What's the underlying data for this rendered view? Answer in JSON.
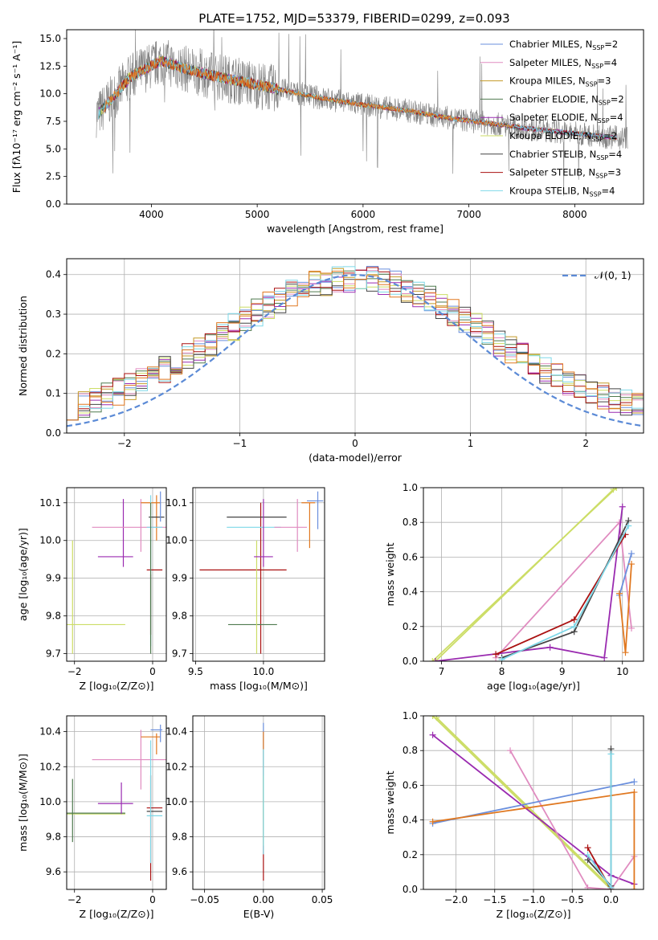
{
  "title": "PLATE=1752, MJD=53379, FIBERID=0299, z=0.093",
  "colors": {
    "chabrier_miles": "#6a8fdd",
    "salpeter_miles": "#e08cc0",
    "kroupa_miles": "#c49a27",
    "chabrier_elodie": "#4f7a4f",
    "salpeter_elodie": "#9a2bb0",
    "kroupa_elodie": "#ccdd66",
    "chabrier_stelib": "#444444",
    "salpeter_stelib": "#aa1111",
    "kroupa_stelib": "#7ed8e8",
    "data": "#808080",
    "orange": "#e07820",
    "gaussian": "#5b8ad6"
  },
  "legend": [
    {
      "label": "Chabrier MILES, N",
      "sub": "SSP",
      "tail": "=2",
      "color_key": "chabrier_miles"
    },
    {
      "label": "Salpeter MILES, N",
      "sub": "SSP",
      "tail": "=4",
      "color_key": "salpeter_miles"
    },
    {
      "label": "Kroupa MILES, N",
      "sub": "SSP",
      "tail": "=3",
      "color_key": "kroupa_miles"
    },
    {
      "label": "Chabrier ELODIE, N",
      "sub": "SSP",
      "tail": "=2",
      "color_key": "chabrier_elodie"
    },
    {
      "label": "Salpeter ELODIE, N",
      "sub": "SSP",
      "tail": "=4",
      "color_key": "salpeter_elodie"
    },
    {
      "label": "Kroupa ELODIE, N",
      "sub": "SSP",
      "tail": "=2",
      "color_key": "kroupa_elodie"
    },
    {
      "label": "Chabrier STELIB, N",
      "sub": "SSP",
      "tail": "=4",
      "color_key": "chabrier_stelib"
    },
    {
      "label": "Salpeter STELIB, N",
      "sub": "SSP",
      "tail": "=3",
      "color_key": "salpeter_stelib"
    },
    {
      "label": "Kroupa STELIB, N",
      "sub": "SSP",
      "tail": "=4",
      "color_key": "kroupa_stelib"
    }
  ],
  "gauss_legend": "𝒩(0, 1)",
  "chart_data": [
    {
      "id": "spectrum",
      "type": "line",
      "xlabel": "wavelength [Angstrom, rest frame]",
      "ylabel": "Flux [fλ10⁻¹⁷ erg cm⁻² s⁻¹ A⁻¹]",
      "xlim": [
        3200,
        8650
      ],
      "ylim": [
        0,
        15.8
      ],
      "xticks": [
        4000,
        5000,
        6000,
        7000,
        8000
      ],
      "yticks": [
        0.0,
        2.5,
        5.0,
        7.5,
        10.0,
        12.5,
        15.0
      ],
      "ytick_labels": [
        "0.0",
        "2.5",
        "5.0",
        "7.5",
        "10.0",
        "12.5",
        "15.0"
      ],
      "model_knots_x": [
        3500,
        3650,
        3800,
        3950,
        4100,
        4300,
        4600,
        4900,
        5200,
        5600,
        6000,
        6400,
        6800,
        7200,
        7600,
        8000,
        8400
      ],
      "model_knots_y": [
        8.2,
        9.8,
        11.5,
        12.3,
        13.0,
        12.3,
        11.6,
        11.0,
        10.4,
        9.6,
        9.0,
        8.5,
        7.8,
        7.3,
        6.8,
        6.4,
        6.0
      ]
    },
    {
      "id": "residuals",
      "type": "histogram",
      "xlabel": "(data-model)/error",
      "ylabel": "Normed distribution",
      "xlim": [
        -2.5,
        2.5
      ],
      "ylim": [
        0,
        0.44
      ],
      "xticks": [
        -2,
        -1,
        0,
        1,
        2
      ],
      "xtick_labels": [
        "−2",
        "−1",
        "0",
        "1",
        "2"
      ],
      "yticks": [
        0.0,
        0.1,
        0.2,
        0.3,
        0.4
      ],
      "ytick_labels": [
        "0.0",
        "0.1",
        "0.2",
        "0.3",
        "0.4"
      ],
      "bins": 50
    },
    {
      "id": "age_vs_z",
      "type": "errorbar",
      "xlabel": "Z [log₁₀(Z/Z⊙)]",
      "ylabel": "age  [log₁₀(age/yr)]",
      "xlim": [
        -2.2,
        0.35
      ],
      "ylim": [
        9.68,
        10.14
      ],
      "xticks": [
        -2,
        0
      ],
      "xtick_labels": [
        "−2",
        "0"
      ],
      "yticks": [
        9.7,
        9.8,
        9.9,
        10.0,
        10.1
      ],
      "ytick_labels": [
        "9.7",
        "9.8",
        "9.9",
        "10.0",
        "10.1"
      ],
      "points": [
        {
          "c": "kroupa_elodie",
          "x": -1.6,
          "xerr": 0.9,
          "y": 9.777,
          "yerr": 0.0
        },
        {
          "c": "kroupa_elodie",
          "x": -2.05,
          "xerr": 0.0,
          "y": 9.85,
          "yerr": 0.15
        },
        {
          "c": "salpeter_elodie",
          "x": -0.95,
          "xerr": 0.45,
          "y": 9.957,
          "yerr": 0.0
        },
        {
          "c": "salpeter_elodie",
          "x": -0.75,
          "xerr": 0.0,
          "y": 10.02,
          "yerr": 0.09
        },
        {
          "c": "salpeter_miles",
          "x": -0.55,
          "xerr": 1.0,
          "y": 10.035,
          "yerr": 0.0
        },
        {
          "c": "salpeter_miles",
          "x": -0.3,
          "xerr": 0.0,
          "y": 10.04,
          "yerr": 0.07
        },
        {
          "c": "orange",
          "x": -0.05,
          "xerr": 0.25,
          "y": 10.1,
          "yerr": 0.0
        },
        {
          "c": "orange",
          "x": 0.1,
          "xerr": 0.0,
          "y": 10.06,
          "yerr": 0.06
        },
        {
          "c": "chabrier_stelib",
          "x": 0.1,
          "xerr": 0.2,
          "y": 10.062,
          "yerr": 0.0
        },
        {
          "c": "chabrier_miles",
          "x": 0.2,
          "xerr": 0.0,
          "y": 10.09,
          "yerr": 0.04
        },
        {
          "c": "kroupa_stelib",
          "x": 0.05,
          "xerr": 0.2,
          "y": 10.035,
          "yerr": 0.0
        },
        {
          "c": "salpeter_stelib",
          "x": 0.05,
          "xerr": 0.2,
          "y": 9.922,
          "yerr": 0.0
        },
        {
          "c": "salpeter_stelib",
          "x": -0.05,
          "xerr": 0.0,
          "y": 9.83,
          "yerr": 0.08
        },
        {
          "c": "kroupa_stelib",
          "x": -0.05,
          "xerr": 0.0,
          "y": 9.92,
          "yerr": 0.2
        },
        {
          "c": "chabrier_elodie",
          "x": -0.05,
          "xerr": 0.0,
          "y": 9.9,
          "yerr": 0.2
        }
      ]
    },
    {
      "id": "age_vs_mass",
      "type": "errorbar",
      "xlabel": "mass [log₁₀(M/M⊙)]",
      "ylabel": "",
      "xlim": [
        9.48,
        10.45
      ],
      "ylim": [
        9.68,
        10.14
      ],
      "xticks": [
        9.5,
        10.0
      ],
      "xtick_labels": [
        "9.5",
        "10.0"
      ],
      "yticks": [
        9.7,
        9.8,
        9.9,
        10.0,
        10.1
      ],
      "ytick_labels": [
        "9.7",
        "9.8",
        "9.9",
        "10.0",
        "10.1"
      ],
      "points": [
        {
          "c": "salpeter_stelib",
          "x": 9.85,
          "xerr": 0.32,
          "y": 9.922,
          "yerr": 0.0
        },
        {
          "c": "salpeter_stelib",
          "x": 9.98,
          "xerr": 0.0,
          "y": 9.9,
          "yerr": 0.2
        },
        {
          "c": "chabrier_elodie",
          "x": 9.92,
          "xerr": 0.18,
          "y": 9.777,
          "yerr": 0.0
        },
        {
          "c": "kroupa_elodie",
          "x": 9.95,
          "xerr": 0.0,
          "y": 9.85,
          "yerr": 0.15
        },
        {
          "c": "chabrier_stelib",
          "x": 9.95,
          "xerr": 0.22,
          "y": 10.062,
          "yerr": 0.0
        },
        {
          "c": "kroupa_stelib",
          "x": 9.93,
          "xerr": 0.2,
          "y": 10.035,
          "yerr": 0.0
        },
        {
          "c": "salpeter_elodie",
          "x": 10.0,
          "xerr": 0.07,
          "y": 9.957,
          "yerr": 0.0
        },
        {
          "c": "salpeter_elodie",
          "x": 10.0,
          "xerr": 0.0,
          "y": 10.02,
          "yerr": 0.09
        },
        {
          "c": "salpeter_miles",
          "x": 10.2,
          "xerr": 0.12,
          "y": 10.035,
          "yerr": 0.0
        },
        {
          "c": "salpeter_miles",
          "x": 10.25,
          "xerr": 0.0,
          "y": 10.04,
          "yerr": 0.07
        },
        {
          "c": "orange",
          "x": 10.33,
          "xerr": 0.05,
          "y": 10.1,
          "yerr": 0.0
        },
        {
          "c": "orange",
          "x": 10.34,
          "xerr": 0.0,
          "y": 10.04,
          "yerr": 0.06
        },
        {
          "c": "chabrier_miles",
          "x": 10.38,
          "xerr": 0.06,
          "y": 10.105,
          "yerr": 0.0
        },
        {
          "c": "chabrier_miles",
          "x": 10.4,
          "xerr": 0.0,
          "y": 10.08,
          "yerr": 0.05
        }
      ]
    },
    {
      "id": "mass_weight_vs_age",
      "type": "line",
      "xlabel": "age  [log₁₀(age/yr)]",
      "ylabel": "mass weight",
      "xlim": [
        6.7,
        10.35
      ],
      "ylim": [
        0,
        1.0
      ],
      "xticks": [
        7,
        8,
        9,
        10
      ],
      "xtick_labels": [
        "7",
        "8",
        "9",
        "10"
      ],
      "yticks": [
        0.0,
        0.2,
        0.4,
        0.6,
        0.8,
        1.0
      ],
      "ytick_labels": [
        "0.0",
        "0.2",
        "0.4",
        "0.6",
        "0.8",
        "1.0"
      ],
      "series": [
        {
          "c": "kroupa_elodie",
          "x": [
            6.85,
            9.9
          ],
          "y": [
            0.0,
            1.0
          ]
        },
        {
          "c": "kroupa_elodie",
          "x": [
            6.9,
            9.85
          ],
          "y": [
            0.0,
            0.99
          ]
        },
        {
          "c": "salpeter_miles",
          "x": [
            7.9,
            9.95,
            10.15
          ],
          "y": [
            0.02,
            0.8,
            0.19
          ]
        },
        {
          "c": "salpeter_elodie",
          "x": [
            6.9,
            8.8,
            9.7,
            10.0
          ],
          "y": [
            0.0,
            0.08,
            0.02,
            0.89
          ]
        },
        {
          "c": "salpeter_stelib",
          "x": [
            7.9,
            9.2,
            10.05
          ],
          "y": [
            0.04,
            0.24,
            0.73
          ]
        },
        {
          "c": "chabrier_stelib",
          "x": [
            8.0,
            9.2,
            10.1
          ],
          "y": [
            0.02,
            0.17,
            0.81
          ]
        },
        {
          "c": "kroupa_stelib",
          "x": [
            8.0,
            9.2,
            10.1
          ],
          "y": [
            0.01,
            0.2,
            0.78
          ]
        },
        {
          "c": "chabrier_miles",
          "x": [
            9.95,
            10.15
          ],
          "y": [
            0.38,
            0.62
          ]
        },
        {
          "c": "orange",
          "x": [
            9.95,
            10.05,
            10.15
          ],
          "y": [
            0.39,
            0.05,
            0.56
          ]
        }
      ]
    },
    {
      "id": "mass_vs_z",
      "type": "errorbar",
      "xlabel": "Z [log₁₀(Z/Z⊙)]",
      "ylabel": "mass [log₁₀(M/M⊙)]",
      "xlim": [
        -2.2,
        0.35
      ],
      "ylim": [
        9.5,
        10.49
      ],
      "xticks": [
        -2,
        0
      ],
      "xtick_labels": [
        "−2",
        "0"
      ],
      "yticks": [
        9.6,
        9.8,
        10.0,
        10.2,
        10.4
      ],
      "ytick_labels": [
        "9.6",
        "9.8",
        "10.0",
        "10.2",
        "10.4"
      ],
      "points": [
        {
          "c": "kroupa_elodie",
          "x": -1.6,
          "xerr": 0.9,
          "y": 9.93,
          "yerr": 0.0
        },
        {
          "c": "chabrier_elodie",
          "x": -1.6,
          "xerr": 0.9,
          "y": 9.935,
          "yerr": 0.0
        },
        {
          "c": "chabrier_elodie",
          "x": -2.05,
          "xerr": 0.0,
          "y": 9.95,
          "yerr": 0.18
        },
        {
          "c": "salpeter_elodie",
          "x": -0.95,
          "xerr": 0.45,
          "y": 9.99,
          "yerr": 0.0
        },
        {
          "c": "salpeter_elodie",
          "x": -0.8,
          "xerr": 0.0,
          "y": 10.02,
          "yerr": 0.09
        },
        {
          "c": "salpeter_miles",
          "x": -0.55,
          "xerr": 1.0,
          "y": 10.24,
          "yerr": 0.0
        },
        {
          "c": "salpeter_miles",
          "x": -0.3,
          "xerr": 0.0,
          "y": 10.24,
          "yerr": 0.17
        },
        {
          "c": "orange",
          "x": -0.05,
          "xerr": 0.25,
          "y": 10.37,
          "yerr": 0.0
        },
        {
          "c": "orange",
          "x": 0.1,
          "xerr": 0.0,
          "y": 10.33,
          "yerr": 0.06
        },
        {
          "c": "chabrier_miles",
          "x": 0.1,
          "xerr": 0.15,
          "y": 10.41,
          "yerr": 0.0
        },
        {
          "c": "chabrier_miles",
          "x": 0.2,
          "xerr": 0.0,
          "y": 10.39,
          "yerr": 0.05
        },
        {
          "c": "salpeter_stelib",
          "x": 0.05,
          "xerr": 0.2,
          "y": 9.965,
          "yerr": 0.0
        },
        {
          "c": "salpeter_stelib",
          "x": -0.05,
          "xerr": 0.0,
          "y": 9.85,
          "yerr": 0.3
        },
        {
          "c": "chabrier_stelib",
          "x": 0.05,
          "xerr": 0.2,
          "y": 9.945,
          "yerr": 0.0
        },
        {
          "c": "kroupa_stelib",
          "x": 0.05,
          "xerr": 0.2,
          "y": 9.92,
          "yerr": 0.0
        },
        {
          "c": "kroupa_stelib",
          "x": -0.05,
          "xerr": 0.0,
          "y": 10.0,
          "yerr": 0.35
        }
      ]
    },
    {
      "id": "mass_vs_ebv",
      "type": "errorbar",
      "xlabel": "E(B-V)",
      "ylabel": "",
      "xlim": [
        -0.06,
        0.052
      ],
      "ylim": [
        9.5,
        10.49
      ],
      "xticks": [
        -0.05,
        0.0,
        0.05
      ],
      "xtick_labels": [
        "−0.05",
        "0.00",
        "0.05"
      ],
      "yticks": [
        9.6,
        9.8,
        10.0,
        10.2,
        10.4
      ],
      "ytick_labels": [
        "9.6",
        "9.8",
        "10.0",
        "10.2",
        "10.4"
      ],
      "points": [
        {
          "c": "salpeter_stelib",
          "x": 0.0,
          "xerr": 0.0,
          "y": 9.85,
          "yerr": 0.3
        },
        {
          "c": "chabrier_miles",
          "x": 0.0,
          "xerr": 0.0,
          "y": 10.2,
          "yerr": 0.25
        },
        {
          "c": "orange",
          "x": 0.0,
          "xerr": 0.0,
          "y": 10.15,
          "yerr": 0.25
        },
        {
          "c": "kroupa_elodie",
          "x": 0.0,
          "xerr": 0.0,
          "y": 9.95,
          "yerr": 0.2
        },
        {
          "c": "kroupa_stelib",
          "x": 0.0,
          "xerr": 0.0,
          "y": 10.0,
          "yerr": 0.3
        }
      ]
    },
    {
      "id": "mass_weight_vs_z",
      "type": "line",
      "xlabel": "Z [log₁₀(Z/Z⊙)]",
      "ylabel": "mass weight",
      "xlim": [
        -2.42,
        0.42
      ],
      "ylim": [
        0,
        1.0
      ],
      "xticks": [
        -2.0,
        -1.5,
        -1.0,
        -0.5,
        0.0
      ],
      "xtick_labels": [
        "−2.0",
        "−1.5",
        "−1.0",
        "−0.5",
        "0.0"
      ],
      "yticks": [
        0.0,
        0.2,
        0.4,
        0.6,
        0.8,
        1.0
      ],
      "ytick_labels": [
        "0.0",
        "0.2",
        "0.4",
        "0.6",
        "0.8",
        "1.0"
      ],
      "series": [
        {
          "c": "kroupa_elodie",
          "x": [
            -2.3,
            0.0
          ],
          "y": [
            1.0,
            0.0
          ]
        },
        {
          "c": "kroupa_elodie",
          "x": [
            -2.25,
            0.0
          ],
          "y": [
            0.99,
            0.01
          ]
        },
        {
          "c": "salpeter_elodie",
          "x": [
            -2.3,
            0.0,
            0.3
          ],
          "y": [
            0.89,
            0.08,
            0.03
          ]
        },
        {
          "c": "salpeter_miles",
          "x": [
            -1.3,
            -0.3,
            0.0,
            0.3
          ],
          "y": [
            0.8,
            0.01,
            0.0,
            0.19
          ]
        },
        {
          "c": "chabrier_miles",
          "x": [
            -2.3,
            0.3
          ],
          "y": [
            0.38,
            0.62
          ]
        },
        {
          "c": "orange",
          "x": [
            -2.3,
            0.3,
            0.3
          ],
          "y": [
            0.39,
            0.56,
            0.0
          ]
        },
        {
          "c": "salpeter_stelib",
          "x": [
            -0.3,
            0.0
          ],
          "y": [
            0.24,
            0.0
          ]
        },
        {
          "c": "chabrier_stelib",
          "x": [
            -0.3,
            0.0,
            0.0
          ],
          "y": [
            0.17,
            0.02,
            0.81
          ]
        },
        {
          "c": "kroupa_stelib",
          "x": [
            -0.3,
            0.0,
            0.0
          ],
          "y": [
            0.2,
            0.01,
            0.78
          ]
        }
      ]
    }
  ]
}
